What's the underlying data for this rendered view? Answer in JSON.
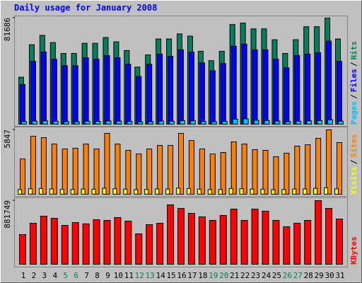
{
  "chart_data": [
    {
      "type": "bar",
      "title": "Daily usage for January 2008",
      "legend_separator": "/",
      "ylim": [
        0,
        81686
      ],
      "yticks": [
        81686
      ],
      "series": [
        {
          "name": "Hits",
          "color": "#00805c",
          "values": [
            36428,
            61265,
            68440,
            62920,
            54641,
            54641,
            62368,
            62368,
            66784,
            63472,
            56849,
            44155,
            53537,
            65680,
            65680,
            69544,
            67888,
            56297,
            49122,
            56297,
            76719,
            77823,
            73408,
            73408,
            65128,
            54641,
            65128,
            75063,
            75063,
            81686,
            65680
          ]
        },
        {
          "name": "Files",
          "color": "#0000ff",
          "values": [
            30908,
            48570,
            55745,
            50226,
            45258,
            45258,
            51330,
            50226,
            52985,
            51330,
            46362,
            36980,
            46362,
            54089,
            52433,
            57401,
            55745,
            47466,
            41395,
            46914,
            60160,
            61816,
            57401,
            57401,
            50226,
            43603,
            52985,
            54089,
            55193,
            64024,
            48570
          ]
        },
        {
          "name": "Pages",
          "color": "#00c0ff",
          "values": [
            2600,
            2900,
            3100,
            2800,
            2500,
            2400,
            2800,
            2700,
            3000,
            2900,
            2600,
            2300,
            2500,
            2900,
            2800,
            3200,
            3100,
            2600,
            2400,
            2700,
            4400,
            4600,
            3500,
            3400,
            2900,
            2500,
            2800,
            3100,
            3300,
            3900,
            2800
          ]
        }
      ]
    },
    {
      "type": "bar",
      "legend_separator": "/",
      "ylim": [
        0,
        5847
      ],
      "yticks": [
        5847
      ],
      "series": [
        {
          "name": "Sites",
          "color": "#ff8000",
          "values": [
            3241,
            5275,
            5148,
            4576,
            4131,
            4195,
            4576,
            4131,
            5529,
            4576,
            4004,
            3686,
            4131,
            4449,
            4449,
            5529,
            4894,
            4131,
            3686,
            3813,
            4767,
            4576,
            4068,
            4004,
            3432,
            3750,
            4385,
            4512,
            5084,
            5847,
            4703
          ]
        },
        {
          "name": "Visits",
          "color": "#ffff00",
          "values": [
            480,
            560,
            580,
            540,
            500,
            490,
            530,
            510,
            600,
            560,
            520,
            470,
            500,
            540,
            530,
            610,
            570,
            520,
            480,
            490,
            580,
            560,
            520,
            510,
            470,
            490,
            530,
            540,
            590,
            640,
            550
          ]
        }
      ]
    },
    {
      "type": "bar",
      "ylim": [
        0,
        881749
      ],
      "yticks": [
        881749
      ],
      "categories": [
        "1",
        "2",
        "3",
        "4",
        "5",
        "6",
        "7",
        "8",
        "9",
        "10",
        "11",
        "12",
        "13",
        "14",
        "15",
        "16",
        "17",
        "18",
        "19",
        "20",
        "21",
        "22",
        "23",
        "24",
        "25",
        "26",
        "27",
        "28",
        "29",
        "30",
        "31"
      ],
      "category_label_colors": [
        "#000000",
        "#000000",
        "#000000",
        "#000000",
        "#00805c",
        "#00805c",
        "#000000",
        "#000000",
        "#000000",
        "#000000",
        "#000000",
        "#00805c",
        "#00805c",
        "#000000",
        "#000000",
        "#000000",
        "#000000",
        "#000000",
        "#00805c",
        "#00805c",
        "#000000",
        "#000000",
        "#000000",
        "#000000",
        "#000000",
        "#00805c",
        "#00805c",
        "#000000",
        "#000000",
        "#000000",
        "#000000"
      ],
      "series": [
        {
          "name": "KBytes",
          "color": "#ff0000",
          "values": [
            416640,
            571683,
            668574,
            639506,
            542615,
            581372,
            562994,
            620125,
            610436,
            649195,
            600746,
            426340,
            552304,
            571683,
            823612,
            775167,
            707331,
            658884,
            610436,
            678263,
            765478,
            610436,
            765478,
            736408,
            610436,
            523236,
            571683,
            610436,
            881749,
            775167,
            629815
          ]
        }
      ]
    }
  ]
}
